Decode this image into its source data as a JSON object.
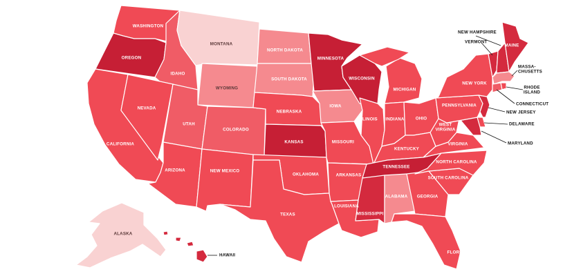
{
  "colors": {
    "level1": "#f9d2d2",
    "level2": "#f58a8f",
    "level3": "#f05c66",
    "level4": "#f04a55",
    "level5": "#d42a3e",
    "level6": "#c61f35",
    "label_light": "#ffffff",
    "label_dark": "#5a3838",
    "leader": "#111111",
    "border": "#ffffff"
  },
  "states": {
    "washington": {
      "label": "WASHINGTON",
      "level": 4
    },
    "oregon": {
      "label": "OREGON",
      "level": 6
    },
    "california": {
      "label": "CALIFORNIA",
      "level": 4
    },
    "idaho": {
      "label": "IDAHO",
      "level": 3
    },
    "nevada": {
      "label": "NEVADA",
      "level": 4
    },
    "montana": {
      "label": "MONTANA",
      "level": 1
    },
    "wyoming": {
      "label": "WYOMING",
      "level": 2
    },
    "utah": {
      "label": "UTAH",
      "level": 3
    },
    "arizona": {
      "label": "ARIZONA",
      "level": 4
    },
    "colorado": {
      "label": "COLORADO",
      "level": 3
    },
    "new_mexico": {
      "label": "NEW MEXICO",
      "level": 4
    },
    "north_dakota": {
      "label": "NORTH DAKOTA",
      "level": 2
    },
    "south_dakota": {
      "label": "SOUTH DAKOTA",
      "level": 2
    },
    "nebraska": {
      "label": "NEBRASKA",
      "level": 4
    },
    "kansas": {
      "label": "KANSAS",
      "level": 6
    },
    "oklahoma": {
      "label": "OKLAHOMA",
      "level": 4
    },
    "texas": {
      "label": "TEXAS",
      "level": 4
    },
    "minnesota": {
      "label": "MINNESOTA",
      "level": 6
    },
    "iowa": {
      "label": "IOWA",
      "level": 2
    },
    "missouri": {
      "label": "MISSOURI",
      "level": 4
    },
    "arkansas": {
      "label": "ARKANSAS",
      "level": 4
    },
    "louisiana": {
      "label": "LOUISIANA",
      "level": 4
    },
    "wisconsin": {
      "label": "WISCONSIN",
      "level": 6
    },
    "illinois": {
      "label": "ILLINOIS",
      "level": 4
    },
    "michigan": {
      "label": "MICHIGAN",
      "level": 4
    },
    "indiana": {
      "label": "INDIANA",
      "level": 4
    },
    "ohio": {
      "label": "OHIO",
      "level": 4
    },
    "kentucky": {
      "label": "KENTUCKY",
      "level": 4
    },
    "tennessee": {
      "label": "TENNESSEE",
      "level": 6
    },
    "mississippi": {
      "label": "MISSISSIPPI",
      "level": 5
    },
    "alabama": {
      "label": "ALABAMA",
      "level": 2
    },
    "georgia": {
      "label": "GEORGIA",
      "level": 4
    },
    "florida": {
      "label": "FLORIDA",
      "level": 4
    },
    "south_carolina": {
      "label": "SOUTH CAROLINA",
      "level": 4
    },
    "north_carolina": {
      "label": "NORTH CAROLINA",
      "level": 4
    },
    "virginia": {
      "label": "VIRGINIA",
      "level": 4
    },
    "west_virginia": {
      "label": "WEST VIRGINIA",
      "level": 4
    },
    "pennsylvania": {
      "label": "PENNSYLVANIA",
      "level": 4
    },
    "new_york": {
      "label": "NEW YORK",
      "level": 4
    },
    "maine": {
      "label": "MAINE",
      "level": 5
    },
    "vermont": {
      "label": "VERMONT",
      "level": 5
    },
    "new_hampshire": {
      "label": "NEW HAMPSHIRE",
      "level": 5
    },
    "massachusetts": {
      "label": "MASSA- CHUSETTS",
      "label_line1": "MASSA-",
      "label_line2": "CHUSETTS",
      "level": 2
    },
    "rhode_island": {
      "label": "RHODE ISLAND",
      "label_line1": "RHODE",
      "label_line2": "ISLAND",
      "level": 4
    },
    "connecticut": {
      "label": "CONNECTICUT",
      "level": 3
    },
    "new_jersey": {
      "label": "NEW JERSEY",
      "level": 5
    },
    "delaware": {
      "label": "DELAWARE",
      "level": 4
    },
    "maryland": {
      "label": "MARYLAND",
      "level": 5
    },
    "alaska": {
      "label": "ALASKA",
      "level": 1
    },
    "hawaii": {
      "label": "HAWAII",
      "level": 5
    }
  }
}
